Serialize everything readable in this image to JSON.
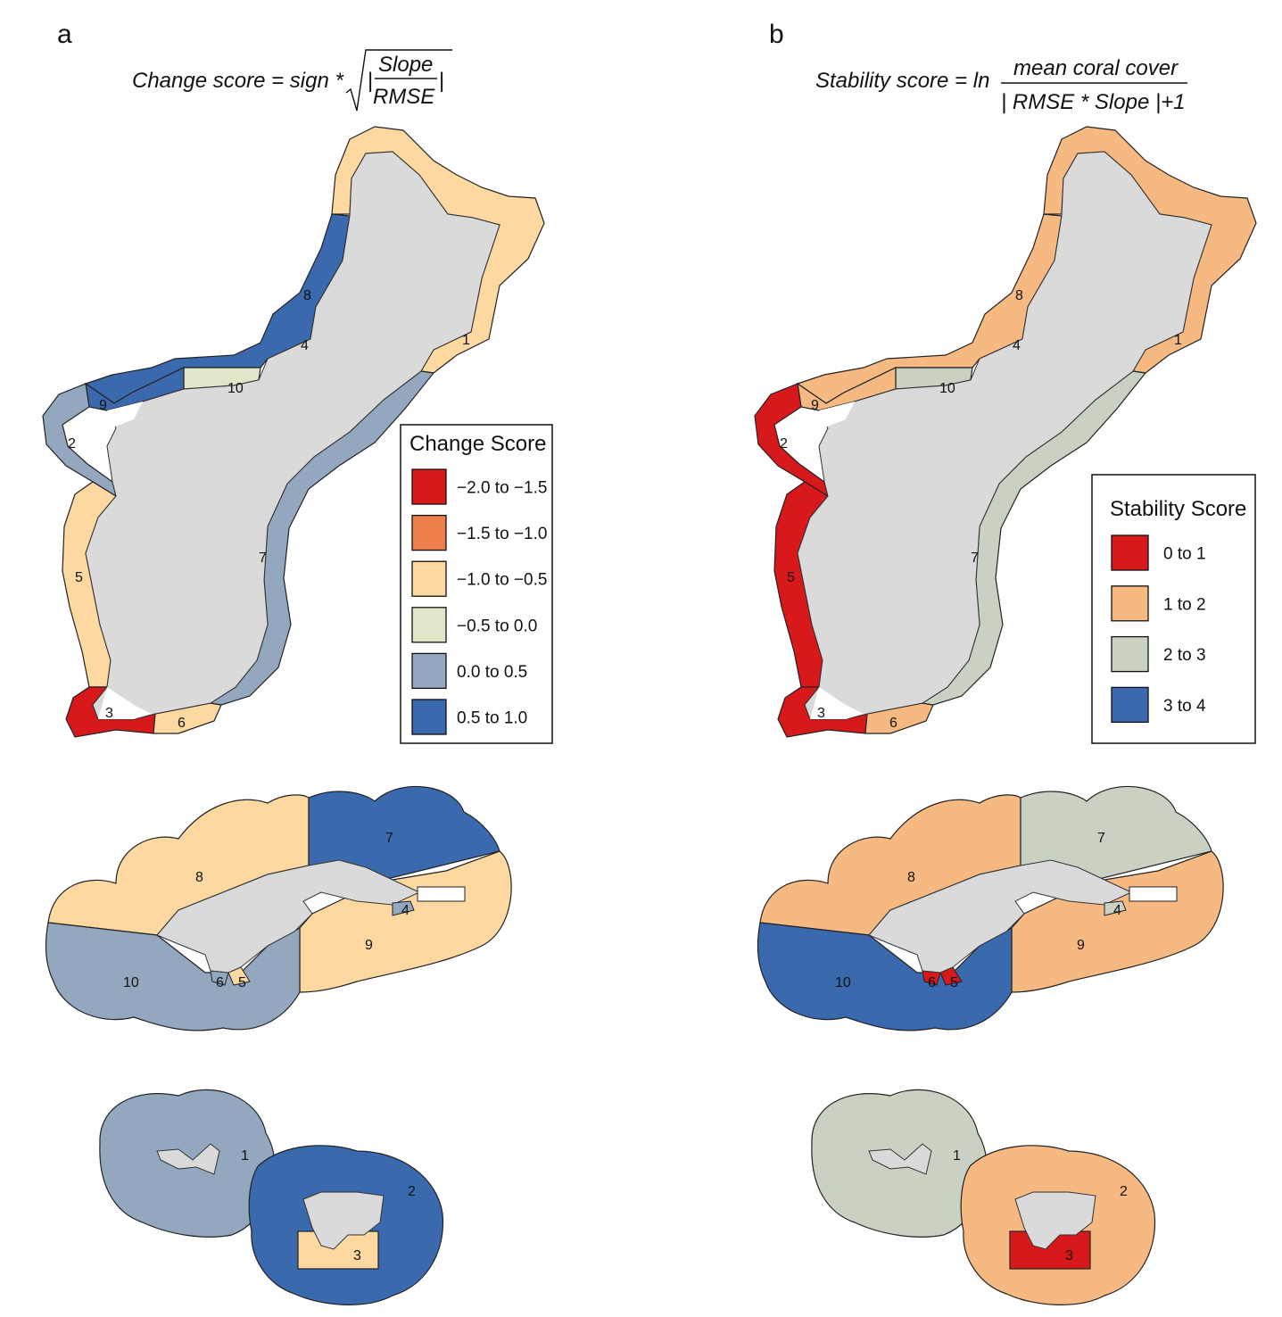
{
  "panels": {
    "a": {
      "letter": "a",
      "formula": {
        "lhs": "Change score",
        "eq": " = ",
        "sign": "sign",
        "star": " *",
        "num": "Slope",
        "den": "RMSE",
        "abs_l": "|",
        "abs_r": "|"
      },
      "legend": {
        "title": "Change Score",
        "items": [
          {
            "label": "−2.0 to −1.5",
            "color": "#d7191c"
          },
          {
            "label": "−1.5 to −1.0",
            "color": "#ec7f4c"
          },
          {
            "label": "−1.0 to −0.5",
            "color": "#fdd8a0"
          },
          {
            "label": "−0.5 to 0.0",
            "color": "#e0e7c8"
          },
          {
            "label": "0.0 to 0.5",
            "color": "#93a8bf"
          },
          {
            "label": "0.5 to 1.0",
            "color": "#3a69ae"
          }
        ]
      },
      "guam_labels": [
        "1",
        "2",
        "3",
        "4",
        "5",
        "6",
        "7",
        "8",
        "9",
        "10"
      ],
      "tutuila_labels": [
        "4",
        "5",
        "6",
        "7",
        "8",
        "9",
        "10"
      ],
      "manua_labels": [
        "1",
        "2",
        "3"
      ]
    },
    "b": {
      "letter": "b",
      "formula": {
        "lhs": "Stability score",
        "eq": " = ",
        "ln": "ln",
        "num": "mean coral cover",
        "den_l": "| ",
        "den_mid": "RMSE * Slope",
        "den_r": " |+1"
      },
      "legend": {
        "title": "Stability Score",
        "items": [
          {
            "label": "0 to 1",
            "color": "#d7191c"
          },
          {
            "label": "1 to 2",
            "color": "#f6b982"
          },
          {
            "label": "2 to 3",
            "color": "#c9d1c2"
          },
          {
            "label": "3 to 4",
            "color": "#3a69ae"
          }
        ]
      },
      "guam_labels": [
        "1",
        "2",
        "3",
        "4",
        "5",
        "6",
        "7",
        "8",
        "9",
        "10"
      ],
      "tutuila_labels": [
        "4",
        "5",
        "6",
        "7",
        "8",
        "9",
        "10"
      ],
      "manua_labels": [
        "1",
        "2",
        "3"
      ]
    }
  },
  "colors": {
    "land": "#dadada",
    "outline": "#222222",
    "white": "#ffffff"
  },
  "region_colors": {
    "a": {
      "guam": {
        "1": "#fdd8a0",
        "2": "#93a8bf",
        "3": "#d7191c",
        "4": "#3a69ae",
        "5": "#fdd8a0",
        "6": "#fdd8a0",
        "7": "#93a8bf",
        "8": "#3a69ae",
        "9": "#3a69ae",
        "10": "#e0e7c8"
      },
      "tutuila": {
        "4": "#93a8bf",
        "5": "#fdd8a0",
        "6": "#93a8bf",
        "7": "#3a69ae",
        "8": "#fdd8a0",
        "9": "#fdd8a0",
        "10": "#93a8bf"
      },
      "manua": {
        "1": "#93a8bf",
        "2": "#3a69ae",
        "3": "#fdd8a0"
      }
    },
    "b": {
      "guam": {
        "1": "#f6b982",
        "2": "#d7191c",
        "3": "#d7191c",
        "4": "#f6b982",
        "5": "#d7191c",
        "6": "#f6b982",
        "7": "#c9d1c2",
        "8": "#f6b982",
        "9": "#f6b982",
        "10": "#c9d1c2"
      },
      "tutuila": {
        "4": "#c9d1c2",
        "5": "#d7191c",
        "6": "#d7191c",
        "7": "#c9d1c2",
        "8": "#f6b982",
        "9": "#f6b982",
        "10": "#3a69ae"
      },
      "manua": {
        "1": "#c9d1c2",
        "2": "#f6b982",
        "3": "#d7191c"
      }
    }
  }
}
